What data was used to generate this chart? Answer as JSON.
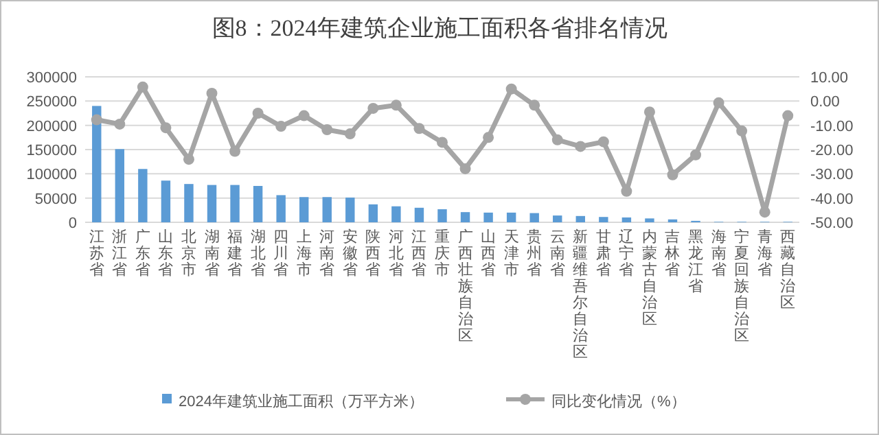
{
  "chart_data": {
    "type": "bar",
    "title": "图8：2024年建筑企业施工面积各省排名情况",
    "categories": [
      "江苏省",
      "浙江省",
      "广东省",
      "山东省",
      "北京市",
      "湖南省",
      "福建省",
      "湖北省",
      "四川省",
      "上海市",
      "河南省",
      "安徽省",
      "陕西省",
      "河北省",
      "江西省",
      "重庆市",
      "广西壮族自治区",
      "山西省",
      "天津市",
      "贵州省",
      "云南省",
      "新疆维吾尔自治区",
      "甘肃省",
      "辽宁省",
      "内蒙古自治区",
      "吉林省",
      "黑龙江省",
      "海南省",
      "宁夏回族自治区",
      "青海省",
      "西藏自治区"
    ],
    "series": [
      {
        "name": "2024年建筑业施工面积（万平方米）",
        "color": "#5b9bd5",
        "values": [
          240000,
          151000,
          110000,
          86000,
          79000,
          77000,
          77000,
          75000,
          56000,
          52000,
          52000,
          51000,
          37000,
          33000,
          30000,
          27000,
          21000,
          20000,
          20000,
          19000,
          14000,
          13000,
          11000,
          10000,
          8000,
          6000,
          3000,
          1000,
          1000,
          1000,
          1000
        ]
      },
      {
        "name": "同比变化情况（%）",
        "type": "line",
        "axis": "y2",
        "color": "#a5a5a5",
        "values": [
          -7.7,
          -9.5,
          5.8,
          -11,
          -24,
          3.2,
          -20.7,
          -5,
          -10.4,
          -6,
          -11.8,
          -13.5,
          -3,
          -1.7,
          -11.3,
          -17,
          -27.9,
          -15,
          5,
          -1.7,
          -16,
          -18.7,
          -16.8,
          -37.2,
          -4.5,
          -30.4,
          -22.2,
          -0.7,
          -12.3,
          -45.8,
          -6
        ]
      }
    ],
    "ylim": [
      0,
      300000
    ],
    "yticks": [
      0,
      50000,
      100000,
      150000,
      200000,
      250000,
      300000
    ],
    "y2lim": [
      -50,
      10
    ],
    "y2ticks": [
      {
        "value": -50,
        "label": "-50.00"
      },
      {
        "value": -40,
        "label": "-40.00"
      },
      {
        "value": -30,
        "label": "-30.00"
      },
      {
        "value": -20,
        "label": "-20.00"
      },
      {
        "value": -10,
        "label": "-10.00"
      },
      {
        "value": 0,
        "label": "0.00"
      },
      {
        "value": 10,
        "label": "10.00"
      }
    ],
    "grid": "y",
    "legend": "bottom",
    "marker": "circle"
  }
}
